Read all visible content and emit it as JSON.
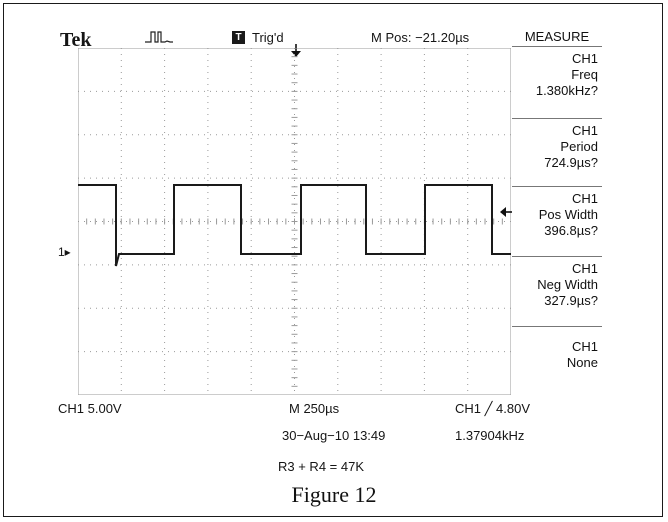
{
  "header": {
    "brand": "Tek",
    "acquisition_icon": "acquire-waveform-icon",
    "trigger_badge": "T",
    "trigger_status": "Trig'd",
    "main_position": "M Pos: −21.20µs"
  },
  "measure_menu": {
    "title": "MEASURE",
    "items": [
      {
        "source": "CH1",
        "type": "Freq",
        "value": "1.380kHz?"
      },
      {
        "source": "CH1",
        "type": "Period",
        "value": "724.9µs?"
      },
      {
        "source": "CH1",
        "type": "Pos Width",
        "value": "396.8µs?"
      },
      {
        "source": "CH1",
        "type": "Neg Width",
        "value": "327.9µs?"
      },
      {
        "source": "CH1",
        "type": "None",
        "value": ""
      }
    ]
  },
  "display": {
    "channel_marker": "1▸",
    "trace_color": "#1a1a1a",
    "grid_color": "#9a9a9a"
  },
  "footer": {
    "ch1_scale": "CH1  5.00V",
    "timebase": "M 250µs",
    "trigger": "CH1 ╱ 4.80V",
    "date": "30−Aug−10 13:49",
    "trigger_freq": "1.37904kHz"
  },
  "note": "R3 + R4 = 47K",
  "caption": "Figure 12"
}
